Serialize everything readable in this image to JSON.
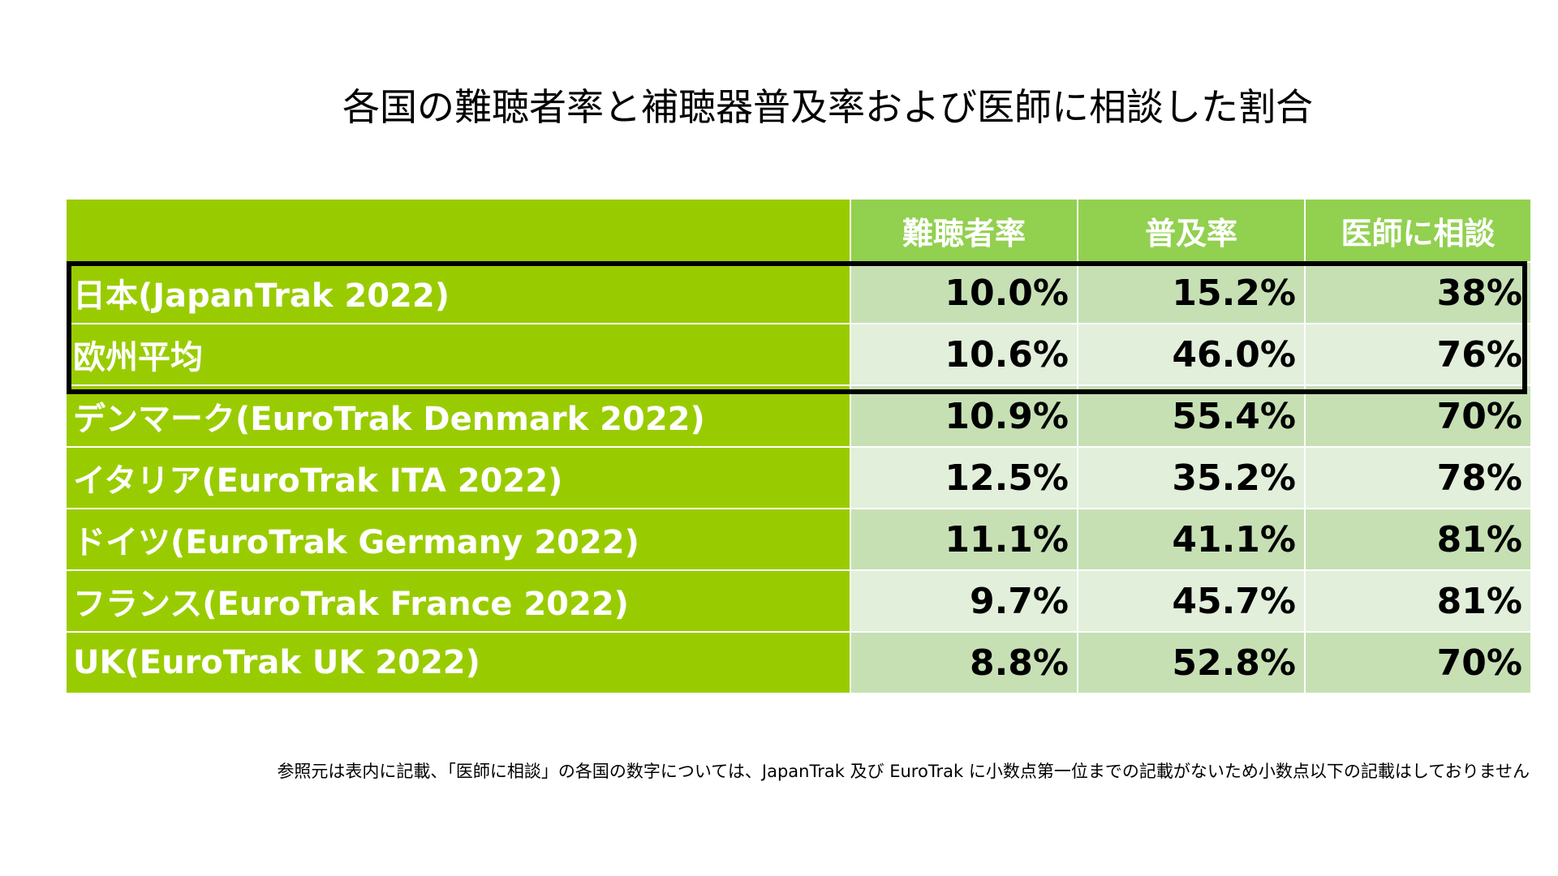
{
  "title": "各国の難聴者率と補聴器普及率および医師に相談した割合",
  "table": {
    "headers": [
      "",
      "難聴者率",
      "普及率",
      "医師に相談"
    ],
    "rows": [
      {
        "name": "日本(JapanTrak 2022)",
        "values": [
          "10.0%",
          "15.2%",
          "38%"
        ]
      },
      {
        "name": "欧州平均",
        "values": [
          "10.6%",
          "46.0%",
          "76%"
        ]
      },
      {
        "name": "デンマーク(EuroTrak Denmark 2022)",
        "values": [
          "10.9%",
          "55.4%",
          "70%"
        ]
      },
      {
        "name": "イタリア(EuroTrak ITA 2022)",
        "values": [
          "12.5%",
          "35.2%",
          "78%"
        ]
      },
      {
        "name": "ドイツ(EuroTrak Germany 2022)",
        "values": [
          "11.1%",
          "41.1%",
          "81%"
        ]
      },
      {
        "name": "フランス(EuroTrak France 2022)",
        "values": [
          "9.7%",
          "45.7%",
          "81%"
        ]
      },
      {
        "name": "UK(EuroTrak UK 2022)",
        "values": [
          "8.8%",
          "52.8%",
          "70%"
        ]
      }
    ]
  },
  "footnote": "参照元は表内に記載、「医師に相談」の各国の数字については、JapanTrak 及び EuroTrak に小数点第一位までの記載がないため小数点以下の記載はしておりません",
  "colors": {
    "name_column": "#99cc00",
    "header_values": "#92d050",
    "row_dark": "#c6e0b4",
    "row_light": "#e2efda",
    "highlight_border": "#000000"
  }
}
